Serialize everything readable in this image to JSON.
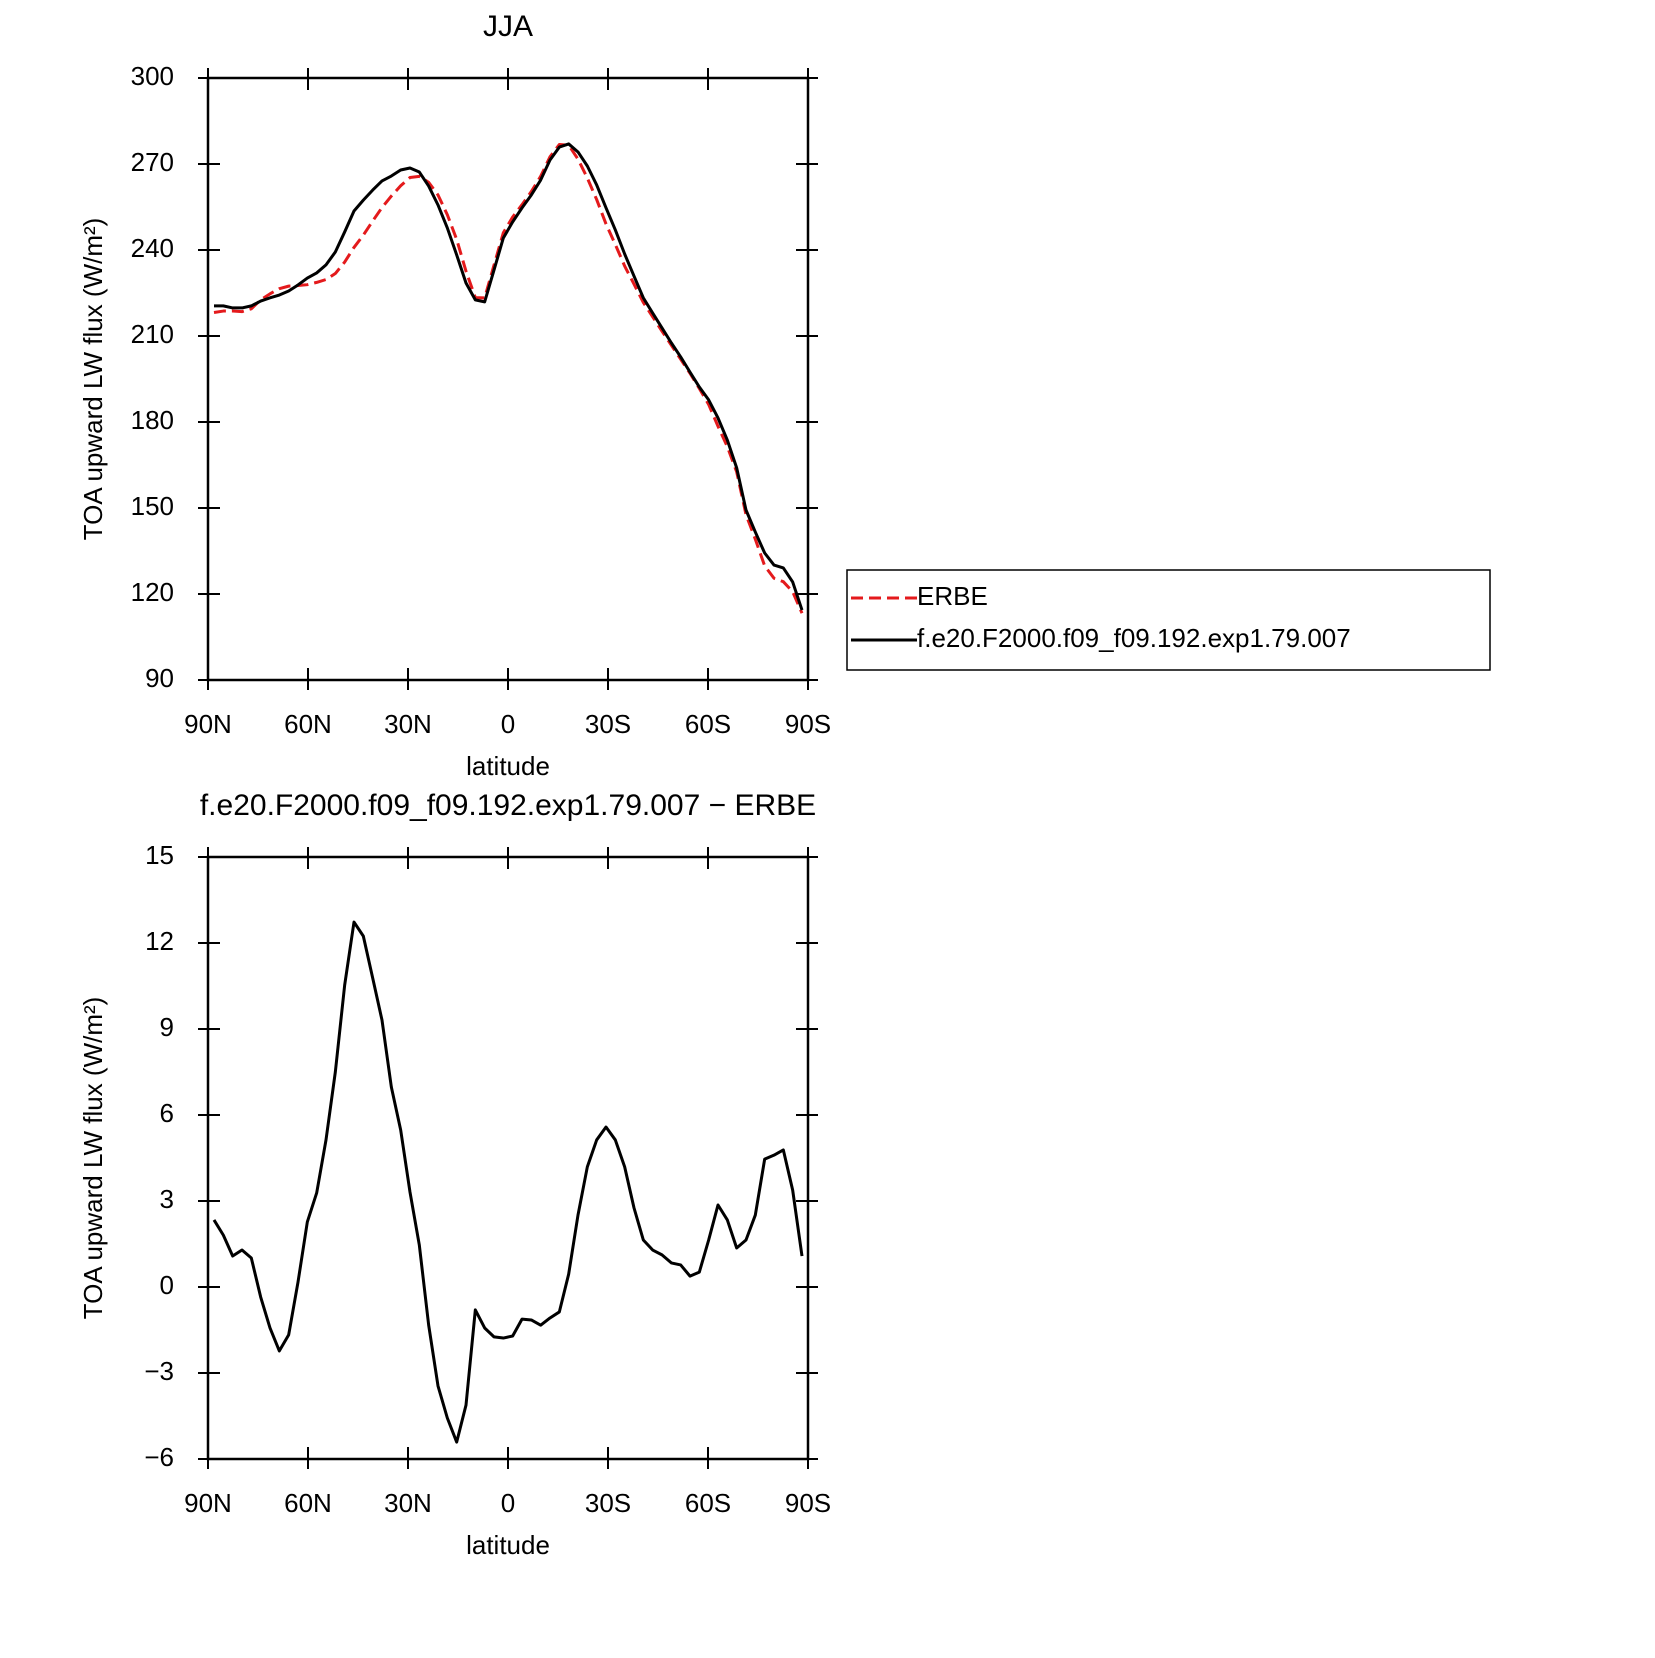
{
  "chart_data": [
    {
      "type": "line",
      "title": "JJA",
      "xlabel": "latitude",
      "ylabel": "TOA upward LW flux (W/m²)",
      "x": [
        88.2,
        85.4,
        82.6,
        79.8,
        77,
        74.2,
        71.4,
        68.6,
        65.8,
        63,
        60.2,
        57.4,
        54.6,
        51.8,
        49,
        46.2,
        43.4,
        40.6,
        37.8,
        35,
        32.2,
        29.4,
        26.6,
        23.8,
        21,
        18.2,
        15.4,
        12.6,
        9.8,
        7,
        4.2,
        1.4,
        -1.4,
        -4.2,
        -7,
        -9.8,
        -12.6,
        -15.4,
        -18.2,
        -21,
        -23.8,
        -26.6,
        -29.4,
        -32.2,
        -35,
        -37.8,
        -40.6,
        -43.4,
        -46.2,
        -49,
        -51.8,
        -54.6,
        -57.4,
        -60.2,
        -63,
        -65.8,
        -68.6,
        -71.4,
        -74.2,
        -77,
        -79.8,
        -82.6,
        -85.4,
        -88.2
      ],
      "series": [
        {
          "name": "ERBE",
          "color": "#e41a1c",
          "dash": true,
          "values": [
            218.2,
            218.7,
            218.7,
            218.5,
            219.5,
            222.6,
            224.7,
            226.5,
            227.4,
            227.6,
            227.9,
            228.7,
            229.7,
            231.8,
            235.8,
            240.9,
            245.2,
            250.1,
            254.8,
            258.8,
            262.4,
            265.3,
            265.7,
            263.6,
            259.2,
            252.3,
            243.7,
            232.6,
            223.4,
            223.3,
            234.7,
            246,
            251.5,
            255.8,
            260.4,
            265.7,
            272.5,
            276.8,
            276.6,
            271.7,
            265.1,
            257.6,
            249.1,
            241.9,
            234.4,
            228.1,
            221.7,
            216.7,
            211.7,
            206.8,
            201.9,
            197,
            191.7,
            186.1,
            178.5,
            171.4,
            162.6,
            147.7,
            139.1,
            129.8,
            125.5,
            124.3,
            120.8,
            113.3
          ]
        },
        {
          "name": "f.e20.F2000.f09_f09.192.exp1.79.007",
          "color": "#000000",
          "dash": false,
          "values": [
            220.5,
            220.5,
            219.8,
            219.8,
            220.5,
            222.2,
            223.3,
            224.3,
            225.7,
            227.8,
            230.2,
            232,
            234.8,
            239.3,
            246.3,
            253.6,
            257.4,
            260.9,
            264.1,
            265.8,
            267.9,
            268.6,
            267.2,
            262.3,
            255.7,
            247.7,
            238.3,
            228.5,
            222.6,
            221.9,
            233,
            244.2,
            249.8,
            254.7,
            259.2,
            264.4,
            271.4,
            275.9,
            277,
            274.2,
            269.3,
            262.7,
            254.7,
            247,
            238.6,
            230.9,
            223.3,
            218,
            212.8,
            207.6,
            202.7,
            197.4,
            192.2,
            187.7,
            181.4,
            173.7,
            164,
            149.3,
            141.6,
            134.3,
            130.1,
            129.1,
            124.2,
            114.4
          ]
        }
      ],
      "xlim": [
        90,
        -90
      ],
      "xticks": [
        {
          "value": 90,
          "label": "90N"
        },
        {
          "value": 60,
          "label": "60N"
        },
        {
          "value": 30,
          "label": "30N"
        },
        0,
        {
          "value": -30,
          "label": "30S"
        },
        {
          "value": -60,
          "label": "60S"
        },
        {
          "value": -90,
          "label": "90S"
        }
      ],
      "ylim": [
        90,
        300
      ],
      "yticks": [
        90,
        120,
        150,
        180,
        210,
        240,
        270,
        300
      ],
      "legend": "right"
    },
    {
      "type": "line",
      "title": "f.e20.F2000.f09_f09.192.exp1.79.007 − ERBE",
      "xlabel": "latitude",
      "ylabel": "TOA upward LW flux (W/m²)",
      "x": [
        88.2,
        85.4,
        82.6,
        79.8,
        77,
        74.2,
        71.4,
        68.6,
        65.8,
        63,
        60.2,
        57.4,
        54.6,
        51.8,
        49,
        46.2,
        43.4,
        40.6,
        37.8,
        35,
        32.2,
        29.4,
        26.6,
        23.8,
        21,
        18.2,
        15.4,
        12.6,
        9.8,
        7,
        4.2,
        1.4,
        -1.4,
        -4.2,
        -7,
        -9.8,
        -12.6,
        -15.4,
        -18.2,
        -21,
        -23.8,
        -26.6,
        -29.4,
        -32.2,
        -35,
        -37.8,
        -40.6,
        -43.4,
        -46.2,
        -49,
        -51.8,
        -54.6,
        -57.4,
        -60.2,
        -63,
        -65.8,
        -68.6,
        -71.4,
        -74.2,
        -77,
        -79.8,
        -82.6,
        -85.4,
        -88.2
      ],
      "color": "#000000",
      "values": [
        2.34,
        1.81,
        1.08,
        1.29,
        1.01,
        -0.35,
        -1.43,
        -2.23,
        -1.67,
        0.17,
        2.27,
        3.28,
        5.13,
        7.5,
        10.53,
        12.73,
        12.24,
        10.78,
        9.31,
        6.98,
        5.48,
        3.31,
        1.46,
        -1.33,
        -3.45,
        -4.57,
        -5.41,
        -4.12,
        -0.8,
        -1.43,
        -1.74,
        -1.78,
        -1.71,
        -1.12,
        -1.15,
        -1.33,
        -1.08,
        -0.87,
        0.45,
        2.51,
        4.19,
        5.13,
        5.58,
        5.13,
        4.19,
        2.76,
        1.64,
        1.29,
        1.12,
        0.84,
        0.77,
        0.38,
        0.52,
        1.64,
        2.86,
        2.34,
        1.36,
        1.64,
        2.51,
        4.46,
        4.6,
        4.78,
        3.38,
        1.08
      ],
      "xlim": [
        90,
        -90
      ],
      "xticks": [
        {
          "value": 90,
          "label": "90N"
        },
        {
          "value": 60,
          "label": "60N"
        },
        {
          "value": 30,
          "label": "30N"
        },
        0,
        {
          "value": -30,
          "label": "30S"
        },
        {
          "value": -60,
          "label": "60S"
        },
        {
          "value": -90,
          "label": "90S"
        }
      ],
      "ylim": [
        -6,
        15
      ],
      "yticks": [
        {
          "value": -6,
          "label": "−6"
        },
        {
          "value": -3,
          "label": "−3"
        },
        0,
        3,
        6,
        9,
        12,
        15
      ]
    }
  ]
}
